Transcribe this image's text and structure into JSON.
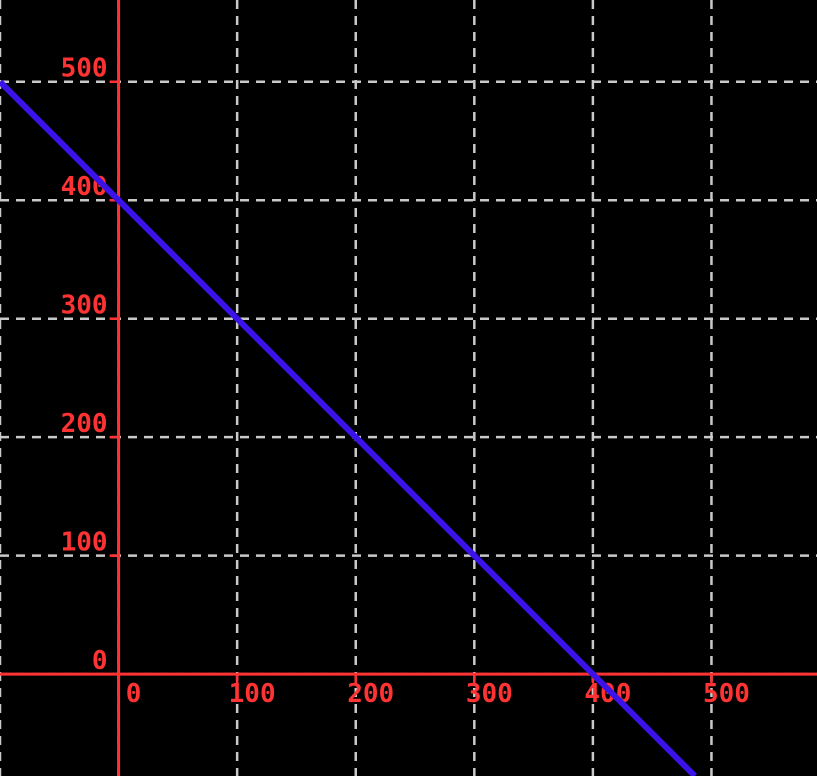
{
  "chart_data": {
    "type": "line",
    "title": "",
    "xlabel": "",
    "ylabel": "",
    "grid": true,
    "legend": false,
    "xlim": [
      -100,
      589
    ],
    "ylim": [
      -86,
      569
    ],
    "grid_x_values": [
      -100,
      0,
      100,
      200,
      300,
      400,
      500
    ],
    "grid_y_values": [
      0,
      100,
      200,
      300,
      400,
      500
    ],
    "x_ticks": [
      0,
      100,
      200,
      300,
      400,
      500
    ],
    "y_ticks": [
      0,
      100,
      200,
      300,
      400,
      500
    ],
    "x_tick_labels": [
      "0",
      "100",
      "200",
      "300",
      "400",
      "500"
    ],
    "y_tick_labels": [
      "0",
      "100",
      "200",
      "300",
      "400",
      "500"
    ],
    "series": [
      {
        "name": "line-y-equals-400-minus-x",
        "slope": -1,
        "intercept": 400,
        "points": [
          [
            -100,
            500
          ],
          [
            486,
            -86
          ]
        ],
        "color": "#3b12e8",
        "width": 6
      }
    ],
    "colors": {
      "background": "#000000",
      "axis": "#ff3333",
      "tick": "#ff3333",
      "tick_label": "#ff3333",
      "grid": "#c9c9c9"
    },
    "style": {
      "grid_dash": "9 7",
      "grid_width": 2.5,
      "axis_width": 3,
      "tick_length": 9
    }
  }
}
